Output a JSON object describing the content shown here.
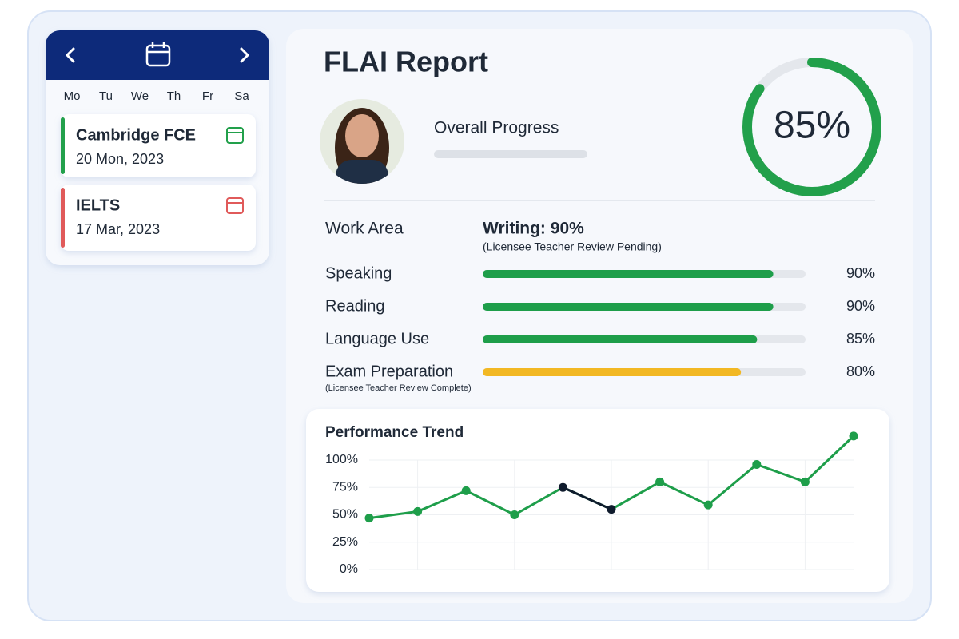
{
  "calendar": {
    "days": [
      "Mo",
      "Tu",
      "We",
      "Th",
      "Fr",
      "Sa"
    ],
    "events": [
      {
        "title": "Cambridge FCE",
        "date": "20 Mon, 2023",
        "color": "#22a04b"
      },
      {
        "title": "IELTS",
        "date": "17 Mar, 2023",
        "color": "#e05a5a"
      }
    ]
  },
  "report": {
    "title": "FLAI Report",
    "progress_label": "Overall Progress",
    "overall": {
      "value": 85,
      "label": "85%",
      "color": "#22a04b"
    },
    "work_area_label": "Work Area",
    "work_area_value": "Writing: 90%",
    "work_area_note": "(Licensee Teacher Review Pending)",
    "skills": [
      {
        "name": "Speaking",
        "value": 90,
        "label": "90%",
        "color": "#1e9e4a"
      },
      {
        "name": "Reading",
        "value": 90,
        "label": "90%",
        "color": "#1e9e4a"
      },
      {
        "name": "Language Use",
        "value": 85,
        "label": "85%",
        "color": "#1e9e4a"
      },
      {
        "name": "Exam Preparation",
        "value": 80,
        "label": "80%",
        "color": "#f2b824",
        "note": "(Licensee Teacher Review Complete)"
      }
    ]
  },
  "chart_data": {
    "type": "line",
    "title": "Performance Trend",
    "categories": [
      null,
      null,
      null,
      null,
      null,
      null,
      null,
      null,
      null,
      null,
      null
    ],
    "values": [
      47,
      53,
      72,
      50,
      75,
      55,
      80,
      59,
      96,
      80,
      122
    ],
    "color": "#1e9e4a",
    "point_colors": [
      "#1e9e4a",
      "#1e9e4a",
      "#1e9e4a",
      "#1e9e4a",
      "#0f1b2d",
      "#0f1b2d",
      "#1e9e4a",
      "#1e9e4a",
      "#1e9e4a",
      "#1e9e4a",
      "#1e9e4a"
    ],
    "ylim": [
      0,
      125
    ],
    "yticks": [
      {
        "value": 0,
        "label": "0%"
      },
      {
        "value": 25,
        "label": "25%"
      },
      {
        "value": 50,
        "label": "50%"
      },
      {
        "value": 75,
        "label": "75%"
      },
      {
        "value": 100,
        "label": "100%"
      }
    ],
    "grid": true
  }
}
